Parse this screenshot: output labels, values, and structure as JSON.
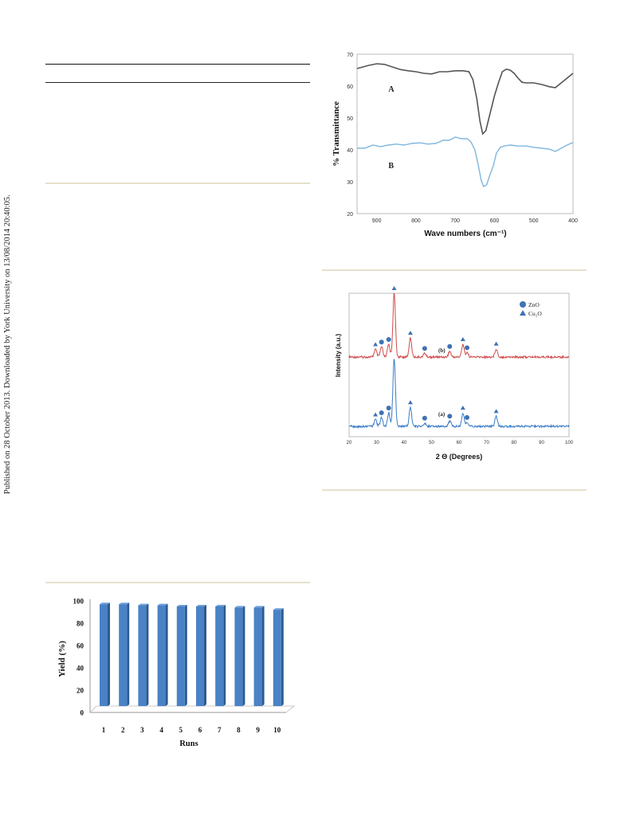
{
  "sidebar_note": "Published on 28 October 2013. Downloaded by York University on 13/08/2014 20:40:05.",
  "chart_data": [
    {
      "type": "line",
      "title": "",
      "xlabel": "Wave numbers (cm⁻¹)",
      "ylabel": "% Transmittance",
      "xlim": [
        950,
        400
      ],
      "ylim": [
        20,
        70
      ],
      "x_reversed": true,
      "x_ticks": [
        900,
        800,
        700,
        600,
        500,
        400
      ],
      "y_ticks": [
        20,
        30,
        40,
        50,
        60,
        70
      ],
      "grid": false,
      "colors": {
        "A": "#555555",
        "B": "#7fb6de"
      },
      "series": [
        {
          "name": "A",
          "x": [
            950,
            920,
            900,
            880,
            860,
            840,
            820,
            800,
            780,
            760,
            740,
            720,
            700,
            680,
            665,
            655,
            645,
            637,
            630,
            622,
            612,
            600,
            590,
            580,
            570,
            560,
            550,
            540,
            530,
            520,
            500,
            480,
            460,
            445,
            430,
            415,
            400
          ],
          "y": [
            65.5,
            66.5,
            67,
            66.8,
            66,
            65.2,
            64.8,
            64.5,
            64,
            63.8,
            64.5,
            64.5,
            64.8,
            64.8,
            64.5,
            62,
            56,
            49,
            45,
            46,
            51,
            57,
            61,
            64.5,
            65.3,
            65,
            64,
            62.5,
            61.2,
            61,
            61,
            60.5,
            59.8,
            59.5,
            61,
            62.5,
            64
          ]
        },
        {
          "name": "B",
          "x": [
            950,
            930,
            910,
            890,
            870,
            850,
            830,
            810,
            790,
            770,
            750,
            730,
            715,
            700,
            685,
            670,
            660,
            650,
            641,
            634,
            628,
            620,
            612,
            603,
            595,
            585,
            575,
            560,
            540,
            520,
            500,
            480,
            460,
            445,
            430,
            415,
            400
          ],
          "y": [
            40.5,
            40.5,
            41.5,
            41,
            41.5,
            41.8,
            41.5,
            42,
            42.2,
            41.8,
            42,
            43,
            43,
            44,
            43.5,
            43.5,
            42.5,
            40,
            35,
            30.5,
            28.5,
            29,
            32,
            35,
            39,
            40.8,
            41.2,
            41.5,
            41.2,
            41.2,
            40.8,
            40.5,
            40.2,
            39.5,
            40.5,
            41.5,
            42.3
          ]
        }
      ],
      "annotations": [
        "A",
        "B"
      ]
    },
    {
      "type": "line",
      "title": "",
      "xlabel": "2 Θ (Degrees)",
      "ylabel": "Intensity (a.u.)",
      "xlim": [
        20,
        100
      ],
      "x_ticks": [
        20,
        30,
        40,
        50,
        60,
        70,
        80,
        90,
        100
      ],
      "grid": false,
      "legend": {
        "placement": "top-right",
        "entries": [
          "ZnO",
          "Cu₂O"
        ]
      },
      "colors": {
        "a": "#3a7cc8",
        "b": "#d04a4a",
        "marker": "#3f72b5"
      },
      "series": [
        {
          "name": "(b)",
          "peaks": [
            {
              "x": 29.6,
              "h": 0.12,
              "marker": "Cu₂O"
            },
            {
              "x": 31.8,
              "h": 0.16,
              "marker": "ZnO"
            },
            {
              "x": 34.4,
              "h": 0.2,
              "marker": "ZnO"
            },
            {
              "x": 36.4,
              "h": 1.0,
              "marker": "ZnO+Cu₂O"
            },
            {
              "x": 42.3,
              "h": 0.3,
              "marker": "Cu₂O"
            },
            {
              "x": 47.5,
              "h": 0.06,
              "marker": "ZnO"
            },
            {
              "x": 56.6,
              "h": 0.09,
              "marker": "ZnO"
            },
            {
              "x": 61.4,
              "h": 0.2,
              "marker": "Cu₂O"
            },
            {
              "x": 62.9,
              "h": 0.07,
              "marker": "ZnO"
            },
            {
              "x": 73.5,
              "h": 0.13,
              "marker": "Cu₂O"
            }
          ]
        },
        {
          "name": "(a)",
          "peaks": [
            {
              "x": 29.6,
              "h": 0.1,
              "marker": "Cu₂O"
            },
            {
              "x": 31.8,
              "h": 0.13,
              "marker": "ZnO"
            },
            {
              "x": 34.4,
              "h": 0.2,
              "marker": "ZnO"
            },
            {
              "x": 36.4,
              "h": 1.0,
              "marker": ""
            },
            {
              "x": 42.3,
              "h": 0.28,
              "marker": "Cu₂O"
            },
            {
              "x": 47.5,
              "h": 0.05,
              "marker": "ZnO"
            },
            {
              "x": 56.6,
              "h": 0.08,
              "marker": "ZnO"
            },
            {
              "x": 61.4,
              "h": 0.2,
              "marker": "Cu₂O"
            },
            {
              "x": 62.9,
              "h": 0.06,
              "marker": "ZnO"
            },
            {
              "x": 73.5,
              "h": 0.15,
              "marker": "Cu₂O"
            }
          ]
        }
      ],
      "annotations": [
        "(b)",
        "(a)"
      ]
    },
    {
      "type": "bar",
      "title": "",
      "categories": [
        "1",
        "2",
        "3",
        "4",
        "5",
        "6",
        "7",
        "8",
        "9",
        "10"
      ],
      "values": [
        97,
        97,
        96,
        96,
        95,
        95,
        95,
        94,
        94,
        92
      ],
      "xlabel": "Runs",
      "ylabel": "Yield (%)",
      "ylim": [
        0,
        100
      ],
      "y_ticks": [
        0,
        20,
        40,
        60,
        80,
        100
      ],
      "grid": false,
      "colors": {
        "bar": "#4a82c6",
        "bar_side": "#2c5a92",
        "bar_top": "#6d9fd8"
      }
    }
  ]
}
